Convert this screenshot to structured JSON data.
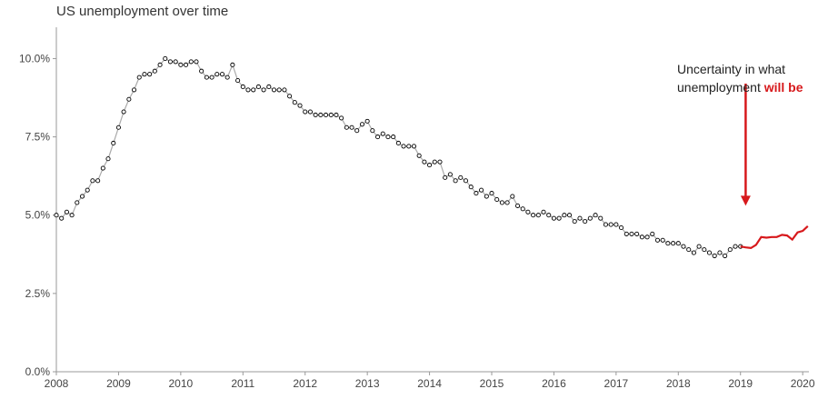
{
  "chart_data": {
    "type": "line",
    "title": "US unemployment over time",
    "xlabel": "",
    "ylabel": "",
    "xlim": [
      2008.0,
      2020.1
    ],
    "ylim": [
      0,
      11
    ],
    "y_ticks": [
      0,
      2.5,
      5,
      7.5,
      10
    ],
    "y_tick_labels": [
      "0.0%",
      "2.5%",
      "5.0%",
      "7.5%",
      "10.0%"
    ],
    "x_ticks": [
      2008,
      2009,
      2010,
      2011,
      2012,
      2013,
      2014,
      2015,
      2016,
      2017,
      2018,
      2019,
      2020
    ],
    "x_tick_labels": [
      "2008",
      "2009",
      "2010",
      "2011",
      "2012",
      "2013",
      "2014",
      "2015",
      "2016",
      "2017",
      "2018",
      "2019",
      "2020"
    ],
    "grid": false,
    "colors": {
      "actual": "#aaaaaa",
      "marker": "#000000",
      "forecast": "#d7191c",
      "arrow": "#d7191c"
    },
    "series": [
      {
        "name": "",
        "style": "points",
        "x": [
          2008.0,
          2008.083,
          2008.167,
          2008.25,
          2008.333,
          2008.417,
          2008.5,
          2008.583,
          2008.667,
          2008.75,
          2008.833,
          2008.917,
          2009.0,
          2009.083,
          2009.167,
          2009.25,
          2009.333,
          2009.417,
          2009.5,
          2009.583,
          2009.667,
          2009.75,
          2009.833,
          2009.917,
          2010.0,
          2010.083,
          2010.167,
          2010.25,
          2010.333,
          2010.417,
          2010.5,
          2010.583,
          2010.667,
          2010.75,
          2010.833,
          2010.917,
          2011.0,
          2011.083,
          2011.167,
          2011.25,
          2011.333,
          2011.417,
          2011.5,
          2011.583,
          2011.667,
          2011.75,
          2011.833,
          2011.917,
          2012.0,
          2012.083,
          2012.167,
          2012.25,
          2012.333,
          2012.417,
          2012.5,
          2012.583,
          2012.667,
          2012.75,
          2012.833,
          2012.917,
          2013.0,
          2013.083,
          2013.167,
          2013.25,
          2013.333,
          2013.417,
          2013.5,
          2013.583,
          2013.667,
          2013.75,
          2013.833,
          2013.917,
          2014.0,
          2014.083,
          2014.167,
          2014.25,
          2014.333,
          2014.417,
          2014.5,
          2014.583,
          2014.667,
          2014.75,
          2014.833,
          2014.917,
          2015.0,
          2015.083,
          2015.167,
          2015.25,
          2015.333,
          2015.417,
          2015.5,
          2015.583,
          2015.667,
          2015.75,
          2015.833,
          2015.917,
          2016.0,
          2016.083,
          2016.167,
          2016.25,
          2016.333,
          2016.417,
          2016.5,
          2016.583,
          2016.667,
          2016.75,
          2016.833,
          2016.917,
          2017.0,
          2017.083,
          2017.167,
          2017.25,
          2017.333,
          2017.417,
          2017.5,
          2017.583,
          2017.667,
          2017.75,
          2017.833,
          2017.917,
          2018.0,
          2018.083,
          2018.167,
          2018.25,
          2018.333,
          2018.417,
          2018.5,
          2018.583,
          2018.667,
          2018.75,
          2018.833,
          2018.917,
          2019.0
        ],
        "values": [
          5.0,
          4.9,
          5.1,
          5.0,
          5.4,
          5.6,
          5.8,
          6.1,
          6.1,
          6.5,
          6.8,
          7.3,
          7.8,
          8.3,
          8.7,
          9.0,
          9.4,
          9.5,
          9.5,
          9.6,
          9.8,
          10.0,
          9.9,
          9.9,
          9.8,
          9.8,
          9.9,
          9.9,
          9.6,
          9.4,
          9.4,
          9.5,
          9.5,
          9.4,
          9.8,
          9.3,
          9.1,
          9.0,
          9.0,
          9.1,
          9.0,
          9.1,
          9.0,
          9.0,
          9.0,
          8.8,
          8.6,
          8.5,
          8.3,
          8.3,
          8.2,
          8.2,
          8.2,
          8.2,
          8.2,
          8.1,
          7.8,
          7.8,
          7.7,
          7.9,
          8.0,
          7.7,
          7.5,
          7.6,
          7.5,
          7.5,
          7.3,
          7.2,
          7.2,
          7.2,
          6.9,
          6.7,
          6.6,
          6.7,
          6.7,
          6.2,
          6.3,
          6.1,
          6.2,
          6.1,
          5.9,
          5.7,
          5.8,
          5.6,
          5.7,
          5.5,
          5.4,
          5.4,
          5.6,
          5.3,
          5.2,
          5.1,
          5.0,
          5.0,
          5.1,
          5.0,
          4.9,
          4.9,
          5.0,
          5.0,
          4.8,
          4.9,
          4.8,
          4.9,
          5.0,
          4.9,
          4.7,
          4.7,
          4.7,
          4.6,
          4.4,
          4.4,
          4.4,
          4.3,
          4.3,
          4.4,
          4.2,
          4.2,
          4.1,
          4.1,
          4.1,
          4.0,
          3.9,
          3.8,
          4.0,
          3.9,
          3.8,
          3.7,
          3.8,
          3.7,
          3.9,
          4.0,
          4.0
        ]
      },
      {
        "name": "",
        "style": "line",
        "x": [
          2019.0,
          2019.083,
          2019.167,
          2019.25,
          2019.333,
          2019.417,
          2019.5,
          2019.583,
          2019.667,
          2019.75,
          2019.833,
          2019.917,
          2020.0,
          2020.083
        ],
        "values": [
          4.0,
          3.97,
          3.95,
          4.05,
          4.3,
          4.28,
          4.3,
          4.3,
          4.37,
          4.35,
          4.22,
          4.45,
          4.5,
          4.65
        ]
      }
    ],
    "annotation": {
      "line1": "Uncertainty in what",
      "line2_plain": "unemployment ",
      "line2_highlight": "will be",
      "arrow_from": [
        2019.083,
        9.2
      ],
      "arrow_to": [
        2019.083,
        5.3
      ]
    }
  }
}
